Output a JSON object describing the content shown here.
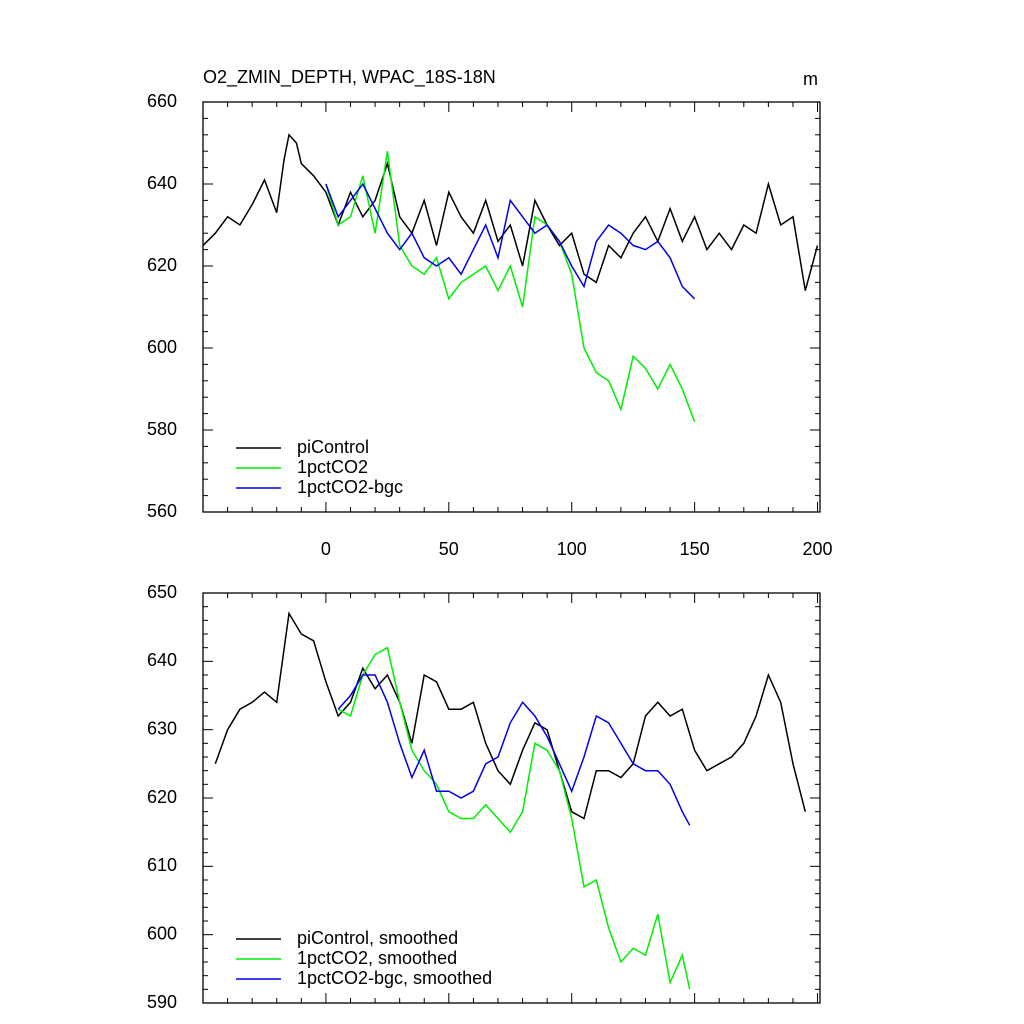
{
  "chart_data": [
    {
      "type": "line",
      "title": "O2_ZMIN_DEPTH, WPAC_18S-18N",
      "units": "m",
      "xlim": [
        -50,
        201
      ],
      "xticks": [
        0,
        50,
        100,
        150,
        200
      ],
      "ylim": [
        560,
        660
      ],
      "yticks": [
        560,
        580,
        600,
        620,
        640,
        660
      ],
      "legend": "lower left",
      "series": [
        {
          "name": "piControl",
          "color": "#000000",
          "x": [
            -50,
            -45,
            -40,
            -35,
            -30,
            -25,
            -20,
            -17,
            -15,
            -12,
            -10,
            -5,
            0,
            5,
            10,
            15,
            20,
            25,
            30,
            35,
            40,
            45,
            50,
            55,
            60,
            65,
            70,
            75,
            80,
            85,
            90,
            95,
            100,
            105,
            110,
            115,
            120,
            125,
            130,
            135,
            140,
            145,
            150,
            155,
            160,
            165,
            170,
            175,
            180,
            185,
            190,
            195,
            200
          ],
          "values": [
            625,
            628,
            632,
            630,
            635,
            641,
            633,
            646,
            652,
            650,
            645,
            642,
            638,
            630,
            638,
            632,
            636,
            645,
            632,
            628,
            636,
            625,
            638,
            632,
            628,
            636,
            626,
            630,
            620,
            636,
            630,
            625,
            628,
            618,
            616,
            625,
            622,
            628,
            632,
            626,
            634,
            626,
            632,
            624,
            628,
            624,
            630,
            628,
            640,
            630,
            632,
            614,
            625
          ]
        },
        {
          "name": "1pctCO2",
          "color": "#00ee00",
          "x": [
            0,
            5,
            10,
            15,
            20,
            25,
            30,
            35,
            40,
            45,
            50,
            55,
            60,
            65,
            70,
            75,
            80,
            85,
            90,
            95,
            100,
            105,
            110,
            115,
            120,
            125,
            130,
            135,
            140,
            145,
            150
          ],
          "values": [
            640,
            630,
            632,
            642,
            628,
            648,
            625,
            620,
            618,
            622,
            612,
            616,
            618,
            620,
            614,
            620,
            610,
            632,
            630,
            626,
            618,
            600,
            594,
            592,
            585,
            598,
            595,
            590,
            596,
            590,
            582
          ]
        },
        {
          "name": "1pctCO2-bgc",
          "color": "#0000ee",
          "x": [
            0,
            5,
            10,
            15,
            20,
            25,
            30,
            35,
            40,
            45,
            50,
            55,
            60,
            65,
            70,
            75,
            80,
            85,
            90,
            95,
            100,
            105,
            110,
            115,
            120,
            125,
            130,
            135,
            140,
            145,
            150
          ],
          "values": [
            640,
            632,
            636,
            640,
            634,
            628,
            624,
            628,
            622,
            620,
            622,
            618,
            624,
            630,
            622,
            636,
            632,
            628,
            630,
            626,
            620,
            615,
            626,
            630,
            628,
            625,
            624,
            626,
            622,
            615,
            612
          ]
        }
      ]
    },
    {
      "type": "line",
      "xlim": [
        -50,
        201
      ],
      "xticks": [
        0,
        50,
        100,
        150,
        200
      ],
      "xtick_labels": false,
      "ylim": [
        590,
        650
      ],
      "yticks": [
        590,
        600,
        610,
        620,
        630,
        640,
        650
      ],
      "legend": "lower left",
      "series": [
        {
          "name": "piControl, smoothed",
          "color": "#000000",
          "x": [
            -45,
            -40,
            -35,
            -30,
            -25,
            -20,
            -15,
            -10,
            -5,
            0,
            5,
            10,
            15,
            20,
            25,
            30,
            35,
            40,
            45,
            50,
            55,
            60,
            65,
            70,
            75,
            80,
            85,
            90,
            95,
            100,
            105,
            110,
            115,
            120,
            125,
            130,
            135,
            140,
            145,
            150,
            155,
            160,
            165,
            170,
            175,
            180,
            185,
            190,
            195
          ],
          "values": [
            625,
            630,
            633,
            634,
            635.5,
            634,
            647,
            644,
            643,
            637,
            632,
            634,
            639,
            636,
            638,
            634,
            628,
            638,
            637,
            633,
            633,
            634,
            628,
            624,
            622,
            627,
            631,
            630,
            624,
            618,
            617,
            624,
            624,
            623,
            625,
            632,
            634,
            632,
            633,
            627,
            624,
            625,
            626,
            628,
            632,
            638,
            634,
            625,
            618
          ]
        },
        {
          "name": "1pctCO2, smoothed",
          "color": "#00ee00",
          "x": [
            5,
            10,
            15,
            20,
            25,
            30,
            35,
            40,
            45,
            50,
            55,
            60,
            65,
            70,
            75,
            80,
            85,
            90,
            95,
            100,
            105,
            110,
            115,
            120,
            125,
            130,
            135,
            140,
            145,
            148
          ],
          "values": [
            633,
            632,
            638,
            641,
            642,
            634,
            627,
            624,
            622,
            618,
            617,
            617,
            619,
            617,
            615,
            618,
            628,
            627,
            624,
            617,
            607,
            608,
            601,
            596,
            598,
            597,
            603,
            593,
            597,
            592
          ]
        },
        {
          "name": "1pctCO2-bgc, smoothed",
          "color": "#0000ee",
          "x": [
            5,
            10,
            15,
            20,
            25,
            30,
            35,
            40,
            45,
            50,
            55,
            60,
            65,
            70,
            75,
            80,
            85,
            90,
            95,
            100,
            105,
            110,
            115,
            120,
            125,
            130,
            135,
            140,
            145,
            148
          ],
          "values": [
            633,
            635,
            638,
            638,
            634,
            628,
            623,
            627,
            621,
            621,
            620,
            621,
            625,
            626,
            631,
            634,
            632,
            629,
            625,
            621,
            626,
            632,
            631,
            628,
            625,
            624,
            624,
            622,
            618,
            616
          ]
        }
      ]
    }
  ]
}
